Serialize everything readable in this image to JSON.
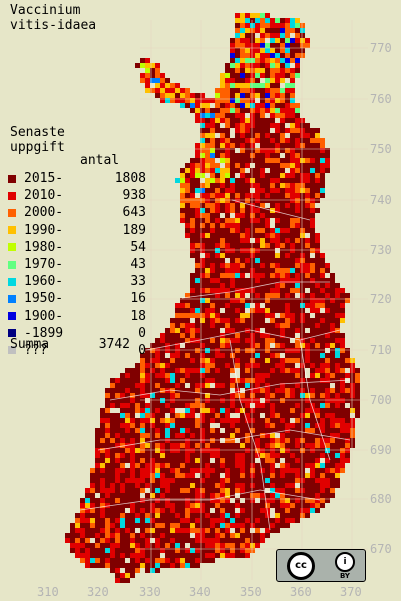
{
  "title": [
    "Vaccinium",
    "vitis-idaea"
  ],
  "legend": {
    "heading": [
      "Senaste",
      "uppgift"
    ],
    "count_header": "antal",
    "rows": [
      {
        "label": "2015-",
        "count": "1808",
        "color": "#800000"
      },
      {
        "label": "2010-",
        "count": "938",
        "color": "#e00000"
      },
      {
        "label": "2000-",
        "count": "643",
        "color": "#ff6000"
      },
      {
        "label": "1990-",
        "count": "189",
        "color": "#ffc000"
      },
      {
        "label": "1980-",
        "count": "54",
        "color": "#c0ff00"
      },
      {
        "label": "1970-",
        "count": "43",
        "color": "#60ff80"
      },
      {
        "label": "1960-",
        "count": "33",
        "color": "#00d8e0"
      },
      {
        "label": "1950-",
        "count": "16",
        "color": "#0080ff"
      },
      {
        "label": "1900-",
        "count": "18",
        "color": "#0000e0"
      },
      {
        "label": "-1899",
        "count": "0",
        "color": "#000080"
      },
      {
        "label": "???",
        "count": "0",
        "color": "#c0c0c0"
      }
    ],
    "summa_label": "Summa",
    "summa_value": "3742"
  },
  "axes": {
    "y_ticks": [
      "770",
      "760",
      "750",
      "740",
      "730",
      "720",
      "710",
      "700",
      "690",
      "680",
      "670"
    ],
    "x_ticks": [
      "310",
      "320",
      "330",
      "340",
      "350",
      "360",
      "370"
    ]
  },
  "license": {
    "cc": "cc",
    "by": "BY"
  }
}
